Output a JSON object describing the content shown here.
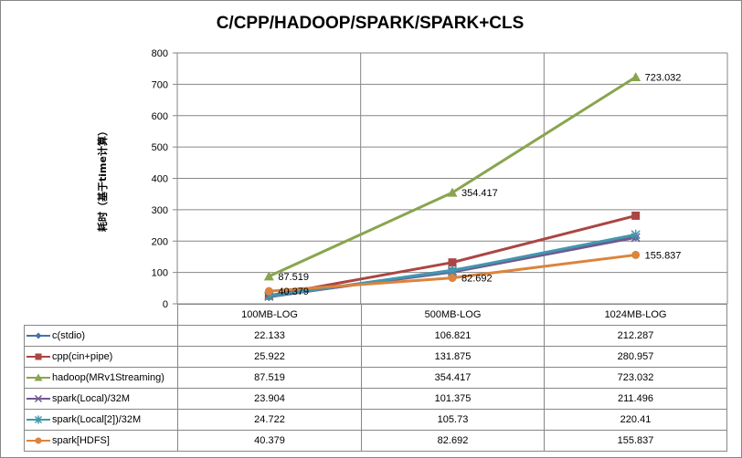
{
  "chart_data": {
    "type": "line",
    "title": "C/CPP/HADOOP/SPARK/SPARK+CLS",
    "ylabel": "耗时（基于time计算）",
    "xlabel": "",
    "categories": [
      "100MB-LOG",
      "500MB-LOG",
      "1024MB-LOG"
    ],
    "ylim": [
      0,
      800
    ],
    "yticks": [
      0,
      100,
      200,
      300,
      400,
      500,
      600,
      700,
      800
    ],
    "grid": "horizontal",
    "legend": "data-table",
    "series": [
      {
        "name": "c(stdio)",
        "values": [
          22.133,
          106.821,
          212.287
        ],
        "color": "#4572A7",
        "marker": "diamond"
      },
      {
        "name": "cpp(cin+pipe)",
        "values": [
          25.922,
          131.875,
          280.957
        ],
        "color": "#AA4643",
        "marker": "square"
      },
      {
        "name": "hadoop(MRv1Streaming)",
        "values": [
          87.519,
          354.417,
          723.032
        ],
        "color": "#89A54E",
        "marker": "triangle"
      },
      {
        "name": "spark(Local)/32M",
        "values": [
          23.904,
          101.375,
          211.496
        ],
        "color": "#71588F",
        "marker": "x"
      },
      {
        "name": "spark(Local[2])/32M",
        "values": [
          24.722,
          105.73,
          220.41
        ],
        "color": "#4198AF",
        "marker": "star"
      },
      {
        "name": "spark[HDFS]",
        "values": [
          40.379,
          82.692,
          155.837
        ],
        "color": "#DB843D",
        "marker": "circle"
      }
    ],
    "data_labels": [
      {
        "series": 2,
        "point": 0,
        "text": "87.519"
      },
      {
        "series": 2,
        "point": 1,
        "text": "354.417"
      },
      {
        "series": 2,
        "point": 2,
        "text": "723.032"
      },
      {
        "series": 5,
        "point": 0,
        "text": "40.379"
      },
      {
        "series": 5,
        "point": 1,
        "text": "82.692"
      },
      {
        "series": 5,
        "point": 2,
        "text": "155.837"
      }
    ],
    "table": [
      [
        "22.133",
        "106.821",
        "212.287"
      ],
      [
        "25.922",
        "131.875",
        "280.957"
      ],
      [
        "87.519",
        "354.417",
        "723.032"
      ],
      [
        "23.904",
        "101.375",
        "211.496"
      ],
      [
        "24.722",
        "105.73",
        "220.41"
      ],
      [
        "40.379",
        "82.692",
        "155.837"
      ]
    ]
  }
}
